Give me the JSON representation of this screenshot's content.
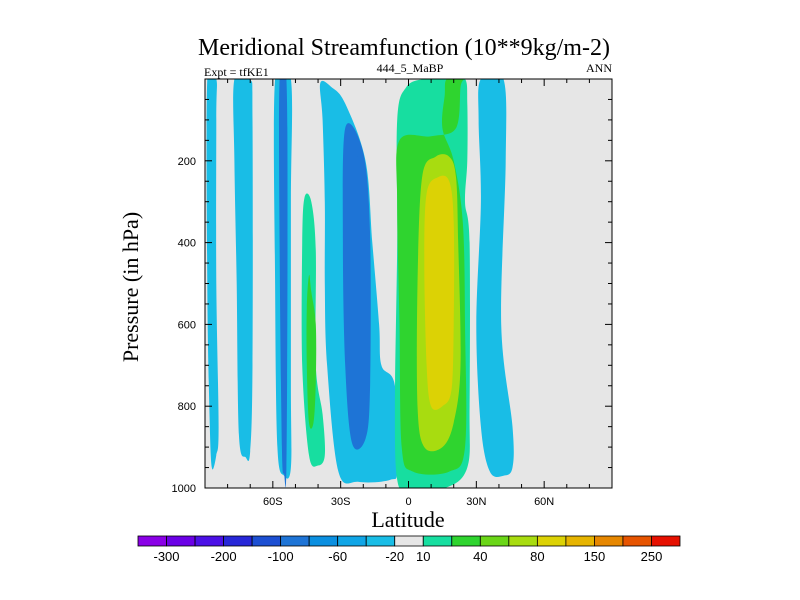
{
  "chart_data": {
    "type": "heatmap",
    "title": "Meridional Streamfunction (10**9kg/m-2)",
    "subtitle_left": "Expt = tfKE1",
    "subtitle_center": "444_5_MaBP",
    "subtitle_right": "ANN",
    "xlabel": "Latitude",
    "ylabel": "Pressure (in hPa)",
    "xlim": [
      -90,
      90
    ],
    "ylim": [
      0,
      1000
    ],
    "y_inverted": true,
    "x_ticks": [
      {
        "value": -60,
        "label": "60S"
      },
      {
        "value": -30,
        "label": "30S"
      },
      {
        "value": 0,
        "label": "0"
      },
      {
        "value": 30,
        "label": "30N"
      },
      {
        "value": 60,
        "label": "60N"
      }
    ],
    "y_ticks": [
      {
        "value": 200,
        "label": "200"
      },
      {
        "value": 400,
        "label": "400"
      },
      {
        "value": 600,
        "label": "600"
      },
      {
        "value": 800,
        "label": "800"
      },
      {
        "value": 1000,
        "label": "1000"
      }
    ],
    "background_color": "#e6e6e6",
    "colorbar": {
      "colors": [
        "#8a00e6",
        "#6b00e6",
        "#4b10e6",
        "#2727d8",
        "#1c4fd2",
        "#1e74d6",
        "#0b8fe0",
        "#10a5e6",
        "#19bde6",
        "#e6e6e6",
        "#17dea0",
        "#2fd42f",
        "#6ad617",
        "#a8dc10",
        "#dcd205",
        "#e6b400",
        "#e68700",
        "#e65400",
        "#e61000"
      ],
      "labels": [
        {
          "after_index": 0,
          "text": "-300"
        },
        {
          "after_index": 2,
          "text": "-200"
        },
        {
          "after_index": 4,
          "text": "-100"
        },
        {
          "after_index": 6,
          "text": "-60"
        },
        {
          "after_index": 8,
          "text": "-20"
        },
        {
          "after_index": 9,
          "text": "10"
        },
        {
          "after_index": 11,
          "text": "40"
        },
        {
          "after_index": 13,
          "text": "80"
        },
        {
          "after_index": 15,
          "text": "150"
        },
        {
          "after_index": 17,
          "text": "250"
        }
      ]
    },
    "regions": [
      {
        "level": "-20",
        "color": "#19bde6",
        "points": [
          [
            -89,
            0
          ],
          [
            -85,
            0
          ],
          [
            -85,
            100
          ],
          [
            -85,
            500
          ],
          [
            -84,
            850
          ],
          [
            -85,
            920
          ],
          [
            -87,
            950
          ],
          [
            -88,
            820
          ],
          [
            -89,
            500
          ]
        ]
      },
      {
        "level": "-20",
        "color": "#19bde6",
        "points": [
          [
            -77,
            0
          ],
          [
            -70,
            0
          ],
          [
            -69,
            100
          ],
          [
            -69,
            700
          ],
          [
            -70,
            910
          ],
          [
            -72,
            925
          ],
          [
            -75,
            870
          ],
          [
            -76,
            500
          ],
          [
            -77,
            200
          ]
        ]
      },
      {
        "level": "-20",
        "color": "#19bde6",
        "points": [
          [
            -59,
            0
          ],
          [
            -52,
            0
          ],
          [
            -52,
            300
          ],
          [
            -52,
            750
          ],
          [
            -52,
            950
          ],
          [
            -55,
            970
          ],
          [
            -58,
            900
          ],
          [
            -59,
            500
          ]
        ]
      },
      {
        "level": "-60",
        "color": "#1e74d6",
        "points": [
          [
            -57,
            0
          ],
          [
            -54,
            0
          ],
          [
            -53.5,
            400
          ],
          [
            -54,
            950
          ],
          [
            -55,
            965
          ],
          [
            -56,
            900
          ],
          [
            -57,
            400
          ]
        ]
      },
      {
        "level": "-60",
        "color": "#1e74d6",
        "points": [
          [
            -56,
            0
          ],
          [
            -55,
            0
          ],
          [
            -54.8,
            500
          ],
          [
            -55,
            900
          ],
          [
            -55.7,
            900
          ],
          [
            -55.8,
            400
          ]
        ]
      },
      {
        "level": "10",
        "color": "#17dea0",
        "points": [
          [
            -46,
            290
          ],
          [
            -43,
            300
          ],
          [
            -41,
            420
          ],
          [
            -41,
            700
          ],
          [
            -38,
            820
          ],
          [
            -37,
            920
          ],
          [
            -40,
            945
          ],
          [
            -44,
            920
          ],
          [
            -47,
            700
          ],
          [
            -47,
            400
          ]
        ]
      },
      {
        "level": "40",
        "color": "#2fd42f",
        "points": [
          [
            -44,
            480
          ],
          [
            -43,
            520
          ],
          [
            -41,
            600
          ],
          [
            -41,
            740
          ],
          [
            -42,
            840
          ],
          [
            -44,
            840
          ],
          [
            -45,
            700
          ],
          [
            -45,
            560
          ]
        ]
      },
      {
        "level": "-20",
        "color": "#19bde6",
        "points": [
          [
            -39,
            10
          ],
          [
            -34,
            20
          ],
          [
            -28,
            60
          ],
          [
            -19,
            200
          ],
          [
            -16,
            400
          ],
          [
            -13,
            600
          ],
          [
            -12,
            700
          ],
          [
            -6,
            750
          ],
          [
            -5,
            950
          ],
          [
            -8,
            980
          ],
          [
            -22,
            985
          ],
          [
            -31,
            960
          ],
          [
            -36,
            700
          ],
          [
            -37,
            500
          ],
          [
            -37,
            300
          ],
          [
            -38,
            100
          ]
        ]
      },
      {
        "level": "-60",
        "color": "#1e74d6",
        "points": [
          [
            -28,
            120
          ],
          [
            -20,
            180
          ],
          [
            -17,
            380
          ],
          [
            -17,
            750
          ],
          [
            -19,
            880
          ],
          [
            -25,
            890
          ],
          [
            -28,
            700
          ],
          [
            -29,
            400
          ]
        ]
      },
      {
        "level": "-60",
        "color": "#1e74d6",
        "points": [
          [
            -25,
            180
          ],
          [
            -20,
            240
          ],
          [
            -19,
            450
          ],
          [
            -19,
            700
          ],
          [
            -24,
            790
          ],
          [
            -26,
            700
          ],
          [
            -26,
            300
          ]
        ]
      },
      {
        "level": "10",
        "color": "#17dea0",
        "points": [
          [
            -5,
            100
          ],
          [
            -1,
            20
          ],
          [
            7,
            0
          ],
          [
            18,
            0
          ],
          [
            25,
            0
          ],
          [
            26,
            60
          ],
          [
            26,
            200
          ],
          [
            25,
            300
          ],
          [
            27,
            400
          ],
          [
            27,
            800
          ],
          [
            26,
            950
          ],
          [
            16,
            1000
          ],
          [
            0,
            1000
          ],
          [
            -5,
            980
          ],
          [
            -6,
            800
          ],
          [
            -5,
            400
          ]
        ]
      },
      {
        "level": "40",
        "color": "#2fd42f",
        "points": [
          [
            -4,
            150
          ],
          [
            10,
            140
          ],
          [
            21,
            120
          ],
          [
            23,
            20
          ],
          [
            24,
            0
          ],
          [
            17,
            0
          ],
          [
            16,
            40
          ],
          [
            15,
            120
          ],
          [
            20,
            200
          ],
          [
            24,
            350
          ],
          [
            25,
            600
          ],
          [
            25,
            900
          ],
          [
            18,
            960
          ],
          [
            2,
            960
          ],
          [
            -3,
            900
          ],
          [
            -4,
            600
          ],
          [
            -5,
            300
          ]
        ]
      },
      {
        "level": "80",
        "color": "#a8dc10",
        "points": [
          [
            6,
            240
          ],
          [
            12,
            190
          ],
          [
            18,
            190
          ],
          [
            21,
            240
          ],
          [
            22,
            400
          ],
          [
            23,
            700
          ],
          [
            20,
            840
          ],
          [
            15,
            900
          ],
          [
            7,
            900
          ],
          [
            4,
            800
          ],
          [
            4,
            500
          ]
        ]
      },
      {
        "level": "150",
        "color": "#dcd205",
        "points": [
          [
            8,
            280
          ],
          [
            13,
            240
          ],
          [
            18,
            250
          ],
          [
            20,
            350
          ],
          [
            20,
            600
          ],
          [
            19,
            760
          ],
          [
            15,
            800
          ],
          [
            10,
            800
          ],
          [
            8,
            700
          ],
          [
            7,
            450
          ]
        ]
      },
      {
        "level": "-20",
        "color": "#19bde6",
        "points": [
          [
            32,
            0
          ],
          [
            42,
            0
          ],
          [
            43,
            200
          ],
          [
            41,
            600
          ],
          [
            46,
            850
          ],
          [
            46,
            950
          ],
          [
            42,
            970
          ],
          [
            36,
            960
          ],
          [
            32,
            850
          ],
          [
            30,
            600
          ],
          [
            32,
            300
          ],
          [
            31,
            100
          ]
        ]
      }
    ]
  }
}
